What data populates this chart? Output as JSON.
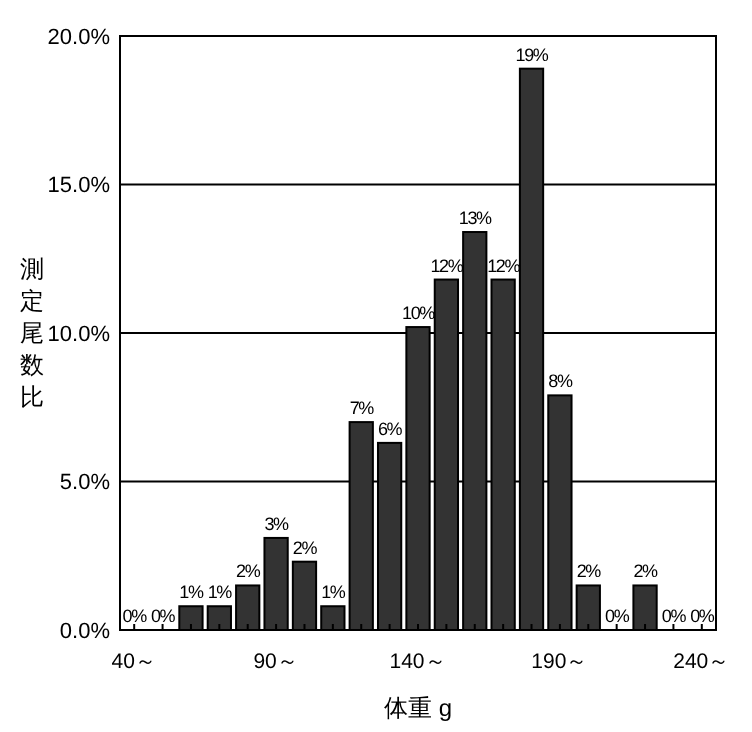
{
  "chart_data": {
    "type": "bar",
    "xlabel": "体重 g",
    "ylabel": "測定尾数比",
    "categories": [
      "40～",
      null,
      null,
      null,
      null,
      "90～",
      null,
      null,
      null,
      null,
      "140～",
      null,
      null,
      null,
      null,
      "190～",
      null,
      null,
      null,
      null,
      "240～"
    ],
    "values": [
      0,
      0,
      0.8,
      0.8,
      1.5,
      3.1,
      2.3,
      0.8,
      7.0,
      6.3,
      10.2,
      11.8,
      13.4,
      11.8,
      18.9,
      7.9,
      1.5,
      0,
      1.5,
      0,
      0
    ],
    "value_labels": [
      "0%",
      "0%",
      "1%",
      "1%",
      "2%",
      "3%",
      "2%",
      "1%",
      "7%",
      "6%",
      "10%",
      "12%",
      "13%",
      "12%",
      "19%",
      "8%",
      "2%",
      "0%",
      "2%",
      "0%",
      "0%"
    ],
    "color": "#333333",
    "ylim": [
      0,
      20
    ],
    "yticks": [
      {
        "value": 0,
        "label": "0.0%"
      },
      {
        "value": 5,
        "label": "5.0%"
      },
      {
        "value": 10,
        "label": "10.0%"
      },
      {
        "value": 15,
        "label": "15.0%"
      },
      {
        "value": 20,
        "label": "20.0%"
      }
    ],
    "grid": "y"
  }
}
